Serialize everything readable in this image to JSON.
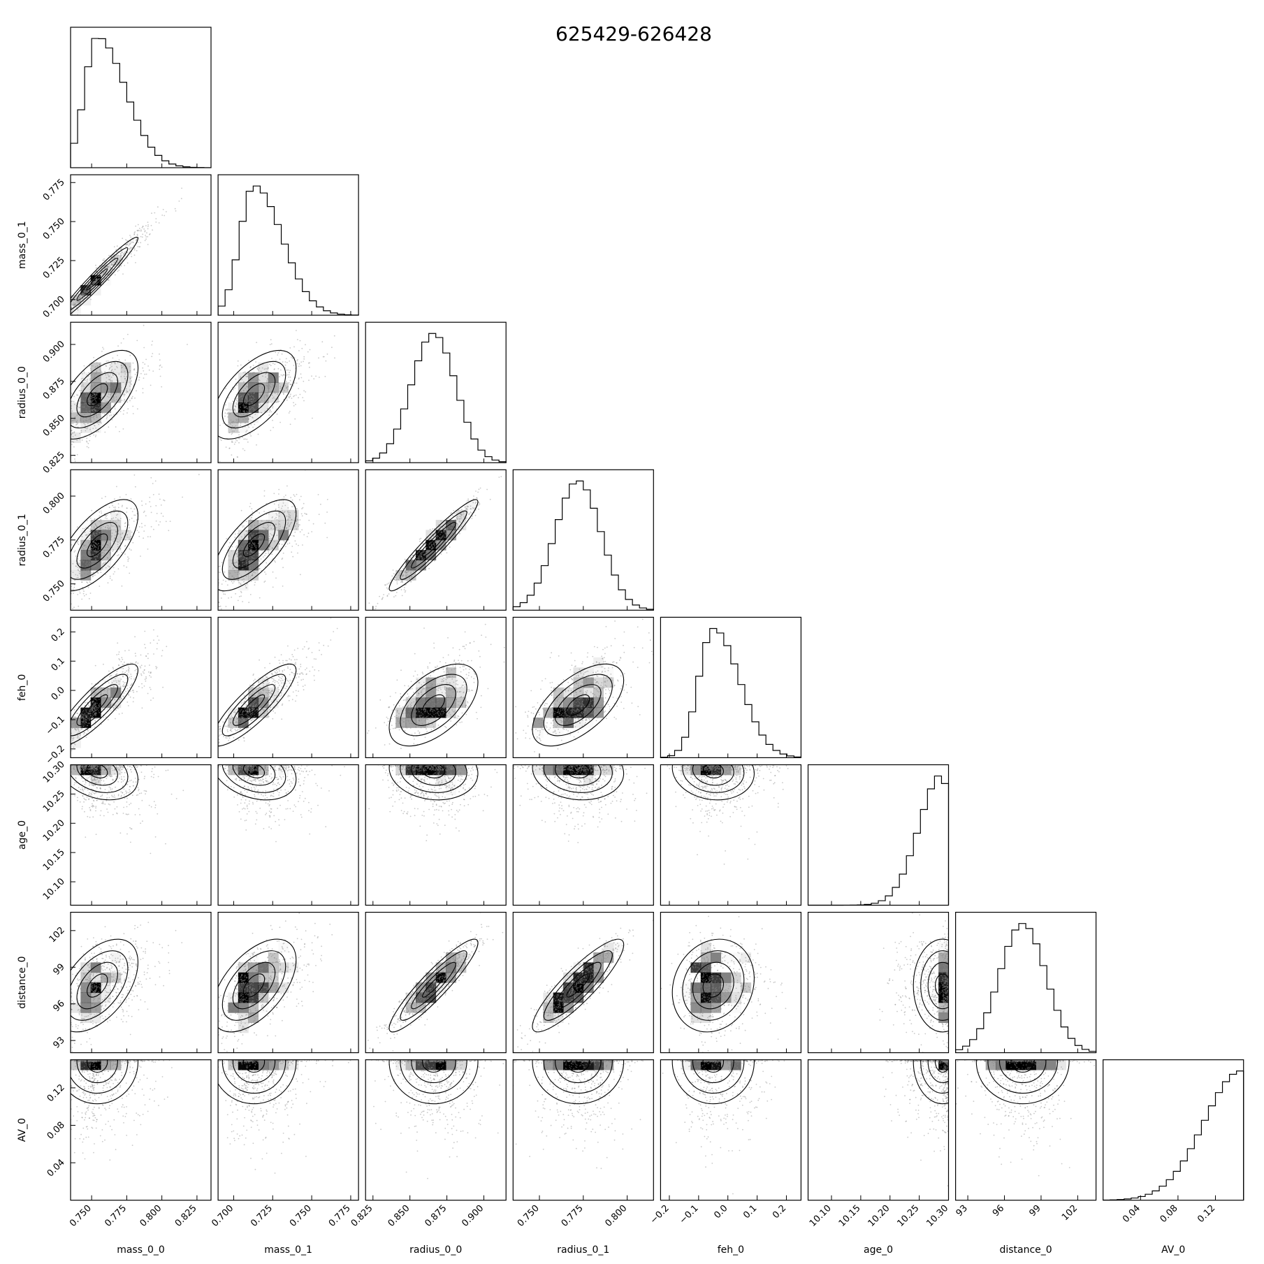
{
  "figure": {
    "title": "625429-626428"
  },
  "chart_data": {
    "type": "corner",
    "title": "625429-626428",
    "parameters": [
      {
        "name": "mass_0_0",
        "range": [
          0.735,
          0.835
        ],
        "ticks": [
          0.75,
          0.775,
          0.8,
          0.825
        ],
        "tick_labels": [
          "0.750",
          "0.775",
          "0.800",
          "0.825"
        ],
        "mode": 0.754,
        "sigma_lo": 0.009,
        "sigma_hi": 0.02
      },
      {
        "name": "mass_0_1",
        "range": [
          0.69,
          0.78
        ],
        "ticks": [
          0.7,
          0.725,
          0.75,
          0.775
        ],
        "tick_labels": [
          "0.700",
          "0.725",
          "0.750",
          "0.775"
        ],
        "mode": 0.713,
        "sigma_lo": 0.009,
        "sigma_hi": 0.018
      },
      {
        "name": "radius_0_0",
        "range": [
          0.82,
          0.915
        ],
        "ticks": [
          0.825,
          0.85,
          0.875,
          0.9
        ],
        "tick_labels": [
          "0.825",
          "0.850",
          "0.875",
          "0.900"
        ],
        "mode": 0.866,
        "sigma_lo": 0.015,
        "sigma_hi": 0.015
      },
      {
        "name": "radius_0_1",
        "range": [
          0.735,
          0.815
        ],
        "ticks": [
          0.75,
          0.775,
          0.8
        ],
        "tick_labels": [
          "0.750",
          "0.775",
          "0.800"
        ],
        "mode": 0.772,
        "sigma_lo": 0.013,
        "sigma_hi": 0.013
      },
      {
        "name": "feh_0",
        "range": [
          -0.23,
          0.25
        ],
        "ticks": [
          -0.2,
          -0.1,
          0.0,
          0.1,
          0.2
        ],
        "tick_labels": [
          "−0.2",
          "−0.1",
          "0.0",
          "0.1",
          "0.2"
        ],
        "mode": -0.05,
        "sigma_lo": 0.05,
        "sigma_hi": 0.09
      },
      {
        "name": "age_0",
        "range": [
          10.06,
          10.3
        ],
        "ticks": [
          10.1,
          10.15,
          10.2,
          10.25,
          10.3
        ],
        "tick_labels": [
          "10.10",
          "10.15",
          "10.20",
          "10.25",
          "10.30"
        ],
        "mode": 10.29,
        "sigma_lo": 0.04,
        "sigma_hi": 0.01
      },
      {
        "name": "distance_0",
        "range": [
          92.0,
          103.5
        ],
        "ticks": [
          93,
          96,
          99,
          102
        ],
        "tick_labels": [
          "93",
          "96",
          "99",
          "102"
        ],
        "mode": 97.5,
        "sigma_lo": 1.9,
        "sigma_hi": 1.9
      },
      {
        "name": "AV_0",
        "range": [
          0.0,
          0.15
        ],
        "ticks": [
          0.04,
          0.08,
          0.12
        ],
        "tick_labels": [
          "0.04",
          "0.08",
          "0.12"
        ],
        "mode": 0.148,
        "sigma_lo": 0.04,
        "sigma_hi": 0.005
      }
    ],
    "correlations": {
      "mass_0_0|mass_0_1": 0.97,
      "mass_0_0|radius_0_0": 0.6,
      "mass_0_1|radius_0_0": 0.6,
      "mass_0_0|radius_0_1": 0.65,
      "mass_0_1|radius_0_1": 0.7,
      "radius_0_0|radius_0_1": 0.95,
      "mass_0_0|feh_0": 0.85,
      "mass_0_1|feh_0": 0.85,
      "radius_0_0|feh_0": 0.55,
      "radius_0_1|feh_0": 0.6,
      "mass_0_0|age_0": -0.3,
      "mass_0_1|age_0": -0.3,
      "radius_0_0|age_0": -0.1,
      "radius_0_1|age_0": -0.1,
      "feh_0|age_0": -0.1,
      "mass_0_0|distance_0": 0.5,
      "mass_0_1|distance_0": 0.55,
      "radius_0_0|distance_0": 0.92,
      "radius_0_1|distance_0": 0.88,
      "feh_0|distance_0": 0.15,
      "age_0|distance_0": 0.0,
      "mass_0_0|AV_0": 0.0,
      "mass_0_1|AV_0": 0.0,
      "radius_0_0|AV_0": 0.0,
      "radius_0_1|AV_0": 0.0,
      "feh_0|AV_0": 0.0,
      "age_0|AV_0": 0.0,
      "distance_0|AV_0": 0.0
    },
    "colors": {
      "line": "#000000",
      "scatter": "#888888",
      "density": "#000000"
    }
  }
}
